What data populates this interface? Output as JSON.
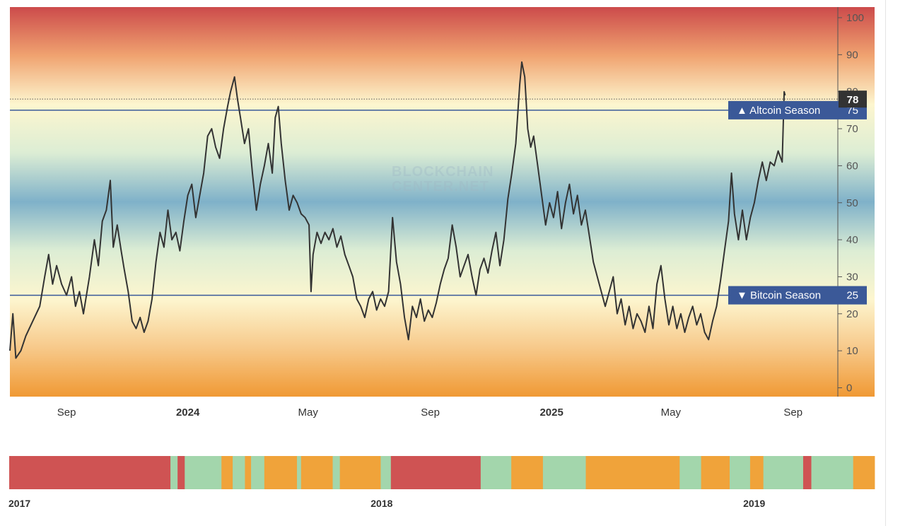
{
  "watermark": [
    "BLOCKCHAIN",
    "CENTER.NET"
  ],
  "colors": {
    "line": "#333333",
    "reference_line": "#3a5a9a",
    "tag_bg": "#3b5998",
    "current_tag_bg": "#333333",
    "strip_red": "#cf5353",
    "strip_orange": "#f0a33a",
    "strip_green": "#a3d6ac",
    "gradient": [
      "#cc4b4b",
      "#f0a370",
      "#fdf6cf",
      "#dcedd4",
      "#7fb1c9",
      "#dcedd4",
      "#fdf6cf",
      "#f7c98a",
      "#f09934"
    ]
  },
  "chart_data": {
    "type": "line",
    "y_axis": {
      "min": 0,
      "max": 100,
      "ticks": [
        "0",
        "10",
        "20",
        "30",
        "40",
        "50",
        "60",
        "70",
        "80",
        "90",
        "100"
      ],
      "position": "right"
    },
    "x_axis": {
      "range": [
        "2023-07-06",
        "2025-11-22"
      ],
      "labels": [
        {
          "date": "2023-09-01",
          "text": "Sep",
          "bold": false
        },
        {
          "date": "2024-01-01",
          "text": "2024",
          "bold": true
        },
        {
          "date": "2024-05-01",
          "text": "May",
          "bold": false
        },
        {
          "date": "2024-09-01",
          "text": "Sep",
          "bold": false
        },
        {
          "date": "2025-01-01",
          "text": "2025",
          "bold": true
        },
        {
          "date": "2025-05-01",
          "text": "May",
          "bold": false
        },
        {
          "date": "2025-09-01",
          "text": "Sep",
          "bold": false
        }
      ]
    },
    "reference_lines": [
      {
        "value": 75,
        "label": "▲ Altcoin Season",
        "value_text": "75"
      },
      {
        "value": 25,
        "label": "▼ Bitcoin Season",
        "value_text": "25"
      }
    ],
    "current": {
      "value": 78,
      "text": "78"
    },
    "series": [
      {
        "points": [
          [
            "2023-07-06",
            10
          ],
          [
            "2023-07-09",
            20
          ],
          [
            "2023-07-12",
            8
          ],
          [
            "2023-07-17",
            10
          ],
          [
            "2023-07-22",
            14
          ],
          [
            "2023-07-29",
            18
          ],
          [
            "2023-08-05",
            22
          ],
          [
            "2023-08-10",
            30
          ],
          [
            "2023-08-14",
            36
          ],
          [
            "2023-08-18",
            28
          ],
          [
            "2023-08-22",
            33
          ],
          [
            "2023-08-27",
            28
          ],
          [
            "2023-09-01",
            25
          ],
          [
            "2023-09-06",
            30
          ],
          [
            "2023-09-10",
            22
          ],
          [
            "2023-09-14",
            26
          ],
          [
            "2023-09-18",
            20
          ],
          [
            "2023-09-24",
            30
          ],
          [
            "2023-09-29",
            40
          ],
          [
            "2023-10-03",
            33
          ],
          [
            "2023-10-07",
            45
          ],
          [
            "2023-10-11",
            48
          ],
          [
            "2023-10-15",
            56
          ],
          [
            "2023-10-18",
            38
          ],
          [
            "2023-10-22",
            44
          ],
          [
            "2023-10-26",
            37
          ],
          [
            "2023-10-29",
            32
          ],
          [
            "2023-11-02",
            26
          ],
          [
            "2023-11-06",
            18
          ],
          [
            "2023-11-10",
            16
          ],
          [
            "2023-11-14",
            19
          ],
          [
            "2023-11-18",
            15
          ],
          [
            "2023-11-22",
            18
          ],
          [
            "2023-11-26",
            24
          ],
          [
            "2023-11-30",
            34
          ],
          [
            "2023-12-04",
            42
          ],
          [
            "2023-12-08",
            38
          ],
          [
            "2023-12-12",
            48
          ],
          [
            "2023-12-16",
            40
          ],
          [
            "2023-12-20",
            42
          ],
          [
            "2023-12-24",
            37
          ],
          [
            "2023-12-28",
            45
          ],
          [
            "2024-01-01",
            52
          ],
          [
            "2024-01-05",
            55
          ],
          [
            "2024-01-09",
            46
          ],
          [
            "2024-01-13",
            52
          ],
          [
            "2024-01-17",
            58
          ],
          [
            "2024-01-21",
            68
          ],
          [
            "2024-01-25",
            70
          ],
          [
            "2024-01-29",
            65
          ],
          [
            "2024-02-02",
            62
          ],
          [
            "2024-02-06",
            70
          ],
          [
            "2024-02-10",
            76
          ],
          [
            "2024-02-13",
            80
          ],
          [
            "2024-02-17",
            84
          ],
          [
            "2024-02-20",
            78
          ],
          [
            "2024-02-23",
            73
          ],
          [
            "2024-02-27",
            66
          ],
          [
            "2024-03-02",
            70
          ],
          [
            "2024-03-06",
            58
          ],
          [
            "2024-03-10",
            48
          ],
          [
            "2024-03-14",
            55
          ],
          [
            "2024-03-18",
            60
          ],
          [
            "2024-03-22",
            66
          ],
          [
            "2024-03-26",
            58
          ],
          [
            "2024-03-29",
            73
          ],
          [
            "2024-04-01",
            76
          ],
          [
            "2024-04-04",
            66
          ],
          [
            "2024-04-08",
            56
          ],
          [
            "2024-04-12",
            48
          ],
          [
            "2024-04-16",
            52
          ],
          [
            "2024-04-20",
            50
          ],
          [
            "2024-04-24",
            47
          ],
          [
            "2024-04-28",
            46
          ],
          [
            "2024-05-02",
            44
          ],
          [
            "2024-05-04",
            26
          ],
          [
            "2024-05-06",
            36
          ],
          [
            "2024-05-10",
            42
          ],
          [
            "2024-05-14",
            39
          ],
          [
            "2024-05-18",
            42
          ],
          [
            "2024-05-22",
            40
          ],
          [
            "2024-05-26",
            43
          ],
          [
            "2024-05-30",
            38
          ],
          [
            "2024-06-03",
            41
          ],
          [
            "2024-06-07",
            36
          ],
          [
            "2024-06-11",
            33
          ],
          [
            "2024-06-15",
            30
          ],
          [
            "2024-06-19",
            24
          ],
          [
            "2024-06-23",
            22
          ],
          [
            "2024-06-27",
            19
          ],
          [
            "2024-07-01",
            24
          ],
          [
            "2024-07-05",
            26
          ],
          [
            "2024-07-09",
            21
          ],
          [
            "2024-07-13",
            24
          ],
          [
            "2024-07-17",
            22
          ],
          [
            "2024-07-21",
            26
          ],
          [
            "2024-07-25",
            46
          ],
          [
            "2024-07-29",
            34
          ],
          [
            "2024-08-02",
            28
          ],
          [
            "2024-08-06",
            19
          ],
          [
            "2024-08-10",
            13
          ],
          [
            "2024-08-14",
            22
          ],
          [
            "2024-08-18",
            19
          ],
          [
            "2024-08-22",
            24
          ],
          [
            "2024-08-26",
            18
          ],
          [
            "2024-08-30",
            21
          ],
          [
            "2024-09-03",
            19
          ],
          [
            "2024-09-07",
            23
          ],
          [
            "2024-09-11",
            28
          ],
          [
            "2024-09-15",
            32
          ],
          [
            "2024-09-19",
            35
          ],
          [
            "2024-09-23",
            44
          ],
          [
            "2024-09-27",
            38
          ],
          [
            "2024-10-01",
            30
          ],
          [
            "2024-10-05",
            33
          ],
          [
            "2024-10-09",
            36
          ],
          [
            "2024-10-13",
            30
          ],
          [
            "2024-10-17",
            25
          ],
          [
            "2024-10-21",
            32
          ],
          [
            "2024-10-25",
            35
          ],
          [
            "2024-10-29",
            31
          ],
          [
            "2024-11-02",
            37
          ],
          [
            "2024-11-06",
            42
          ],
          [
            "2024-11-10",
            33
          ],
          [
            "2024-11-14",
            40
          ],
          [
            "2024-11-18",
            51
          ],
          [
            "2024-11-22",
            58
          ],
          [
            "2024-11-26",
            66
          ],
          [
            "2024-11-30",
            82
          ],
          [
            "2024-12-02",
            88
          ],
          [
            "2024-12-05",
            84
          ],
          [
            "2024-12-08",
            70
          ],
          [
            "2024-12-11",
            65
          ],
          [
            "2024-12-14",
            68
          ],
          [
            "2024-12-18",
            60
          ],
          [
            "2024-12-22",
            52
          ],
          [
            "2024-12-26",
            44
          ],
          [
            "2024-12-30",
            50
          ],
          [
            "2025-01-03",
            46
          ],
          [
            "2025-01-07",
            53
          ],
          [
            "2025-01-11",
            43
          ],
          [
            "2025-01-15",
            50
          ],
          [
            "2025-01-19",
            55
          ],
          [
            "2025-01-23",
            47
          ],
          [
            "2025-01-27",
            52
          ],
          [
            "2025-01-31",
            44
          ],
          [
            "2025-02-04",
            48
          ],
          [
            "2025-02-08",
            41
          ],
          [
            "2025-02-12",
            34
          ],
          [
            "2025-02-16",
            30
          ],
          [
            "2025-02-20",
            26
          ],
          [
            "2025-02-24",
            22
          ],
          [
            "2025-02-28",
            26
          ],
          [
            "2025-03-04",
            30
          ],
          [
            "2025-03-08",
            20
          ],
          [
            "2025-03-12",
            24
          ],
          [
            "2025-03-16",
            17
          ],
          [
            "2025-03-20",
            22
          ],
          [
            "2025-03-24",
            16
          ],
          [
            "2025-03-28",
            20
          ],
          [
            "2025-04-01",
            18
          ],
          [
            "2025-04-05",
            15
          ],
          [
            "2025-04-09",
            22
          ],
          [
            "2025-04-13",
            16
          ],
          [
            "2025-04-17",
            28
          ],
          [
            "2025-04-21",
            33
          ],
          [
            "2025-04-25",
            24
          ],
          [
            "2025-04-29",
            17
          ],
          [
            "2025-05-03",
            22
          ],
          [
            "2025-05-07",
            16
          ],
          [
            "2025-05-11",
            20
          ],
          [
            "2025-05-15",
            15
          ],
          [
            "2025-05-19",
            19
          ],
          [
            "2025-05-23",
            22
          ],
          [
            "2025-05-27",
            17
          ],
          [
            "2025-05-31",
            20
          ],
          [
            "2025-06-04",
            15
          ],
          [
            "2025-06-08",
            13
          ],
          [
            "2025-06-12",
            18
          ],
          [
            "2025-06-16",
            22
          ],
          [
            "2025-06-20",
            29
          ],
          [
            "2025-06-24",
            37
          ],
          [
            "2025-06-28",
            45
          ],
          [
            "2025-07-01",
            58
          ],
          [
            "2025-07-04",
            47
          ],
          [
            "2025-07-08",
            40
          ],
          [
            "2025-07-12",
            48
          ],
          [
            "2025-07-16",
            40
          ],
          [
            "2025-07-20",
            46
          ],
          [
            "2025-07-24",
            50
          ],
          [
            "2025-07-28",
            56
          ],
          [
            "2025-08-01",
            61
          ],
          [
            "2025-08-05",
            56
          ],
          [
            "2025-08-09",
            61
          ],
          [
            "2025-08-13",
            60
          ],
          [
            "2025-08-17",
            64
          ],
          [
            "2025-08-21",
            61
          ],
          [
            "2025-08-23",
            80
          ],
          [
            "2025-08-24",
            79
          ]
        ]
      }
    ],
    "season_strip": {
      "range": [
        "2017-01-01",
        "2019-04-29"
      ],
      "labels": [
        {
          "date": "2017-01-01",
          "text": "2017"
        },
        {
          "date": "2018-01-01",
          "text": "2018"
        },
        {
          "date": "2019-01-01",
          "text": "2019"
        }
      ],
      "segments": [
        [
          "2017-01-01",
          "2017-06-08",
          "red"
        ],
        [
          "2017-06-08",
          "2017-06-15",
          "green"
        ],
        [
          "2017-06-15",
          "2017-06-22",
          "red"
        ],
        [
          "2017-06-22",
          "2017-07-28",
          "green"
        ],
        [
          "2017-07-28",
          "2017-08-08",
          "orange"
        ],
        [
          "2017-08-08",
          "2017-08-20",
          "green"
        ],
        [
          "2017-08-20",
          "2017-08-26",
          "orange"
        ],
        [
          "2017-08-26",
          "2017-09-08",
          "green"
        ],
        [
          "2017-09-08",
          "2017-10-10",
          "orange"
        ],
        [
          "2017-10-10",
          "2017-10-14",
          "green"
        ],
        [
          "2017-10-14",
          "2017-11-14",
          "orange"
        ],
        [
          "2017-11-14",
          "2017-11-21",
          "green"
        ],
        [
          "2017-11-21",
          "2017-12-31",
          "orange"
        ],
        [
          "2017-12-31",
          "2018-01-10",
          "green"
        ],
        [
          "2018-01-10",
          "2018-01-20",
          "red"
        ],
        [
          "2018-01-20",
          "2018-04-08",
          "red"
        ],
        [
          "2018-04-08",
          "2018-05-08",
          "green"
        ],
        [
          "2018-05-08",
          "2018-06-08",
          "orange"
        ],
        [
          "2018-06-08",
          "2018-06-16",
          "green"
        ],
        [
          "2018-06-16",
          "2018-07-20",
          "green"
        ],
        [
          "2018-07-20",
          "2018-10-20",
          "orange"
        ],
        [
          "2018-10-20",
          "2018-11-10",
          "green"
        ],
        [
          "2018-11-10",
          "2018-12-08",
          "orange"
        ],
        [
          "2018-12-08",
          "2018-12-28",
          "green"
        ],
        [
          "2018-12-28",
          "2019-01-10",
          "orange"
        ],
        [
          "2019-01-10",
          "2019-02-18",
          "green"
        ],
        [
          "2019-02-18",
          "2019-02-26",
          "red"
        ],
        [
          "2019-02-26",
          "2019-04-08",
          "green"
        ],
        [
          "2019-04-08",
          "2019-04-29",
          "orange"
        ]
      ]
    }
  }
}
